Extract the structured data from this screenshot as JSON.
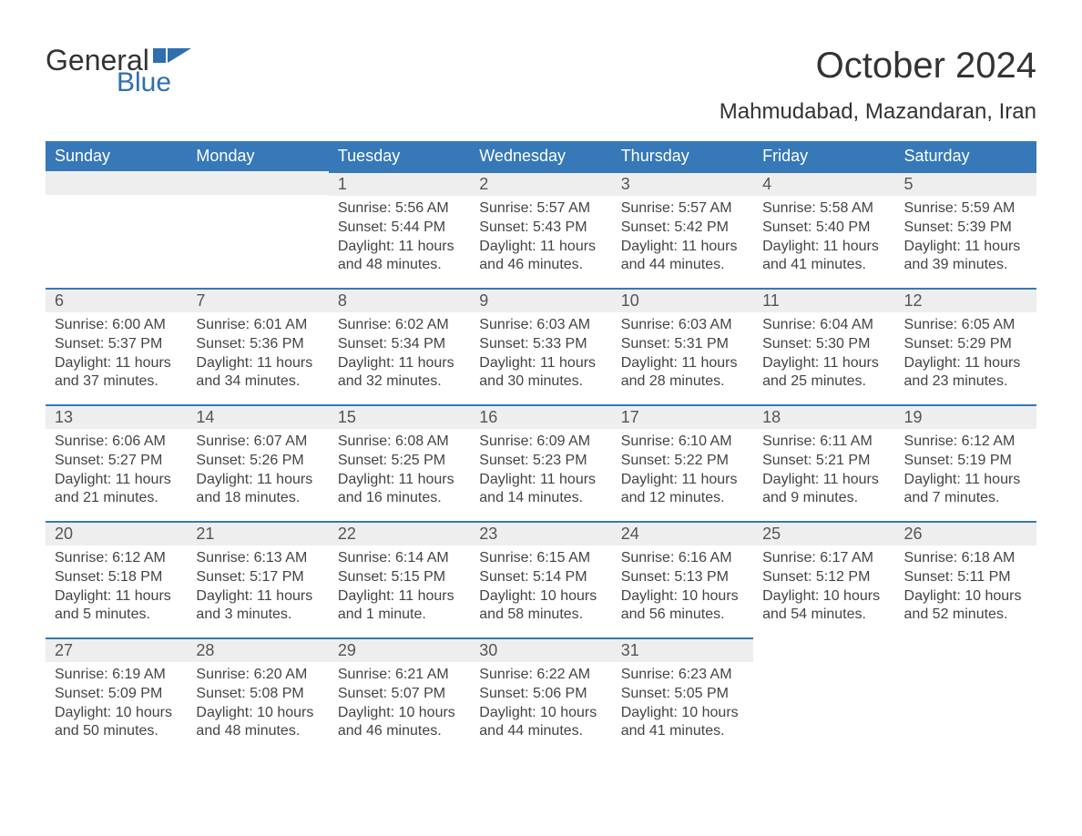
{
  "logo": {
    "text1": "General",
    "text2": "Blue",
    "flag_color": "#2f6fae"
  },
  "title": "October 2024",
  "location": "Mahmudabad, Mazandaran, Iran",
  "colors": {
    "header_bg": "#3678b8",
    "header_text": "#ffffff",
    "day_header_bg": "#eeeeee",
    "day_border": "#3678b8",
    "body_text": "#444444",
    "title_text": "#333333"
  },
  "weekdays": [
    "Sunday",
    "Monday",
    "Tuesday",
    "Wednesday",
    "Thursday",
    "Friday",
    "Saturday"
  ],
  "weeks": [
    [
      null,
      null,
      {
        "n": "1",
        "sr": "Sunrise: 5:56 AM",
        "ss": "Sunset: 5:44 PM",
        "dl": "Daylight: 11 hours and 48 minutes."
      },
      {
        "n": "2",
        "sr": "Sunrise: 5:57 AM",
        "ss": "Sunset: 5:43 PM",
        "dl": "Daylight: 11 hours and 46 minutes."
      },
      {
        "n": "3",
        "sr": "Sunrise: 5:57 AM",
        "ss": "Sunset: 5:42 PM",
        "dl": "Daylight: 11 hours and 44 minutes."
      },
      {
        "n": "4",
        "sr": "Sunrise: 5:58 AM",
        "ss": "Sunset: 5:40 PM",
        "dl": "Daylight: 11 hours and 41 minutes."
      },
      {
        "n": "5",
        "sr": "Sunrise: 5:59 AM",
        "ss": "Sunset: 5:39 PM",
        "dl": "Daylight: 11 hours and 39 minutes."
      }
    ],
    [
      {
        "n": "6",
        "sr": "Sunrise: 6:00 AM",
        "ss": "Sunset: 5:37 PM",
        "dl": "Daylight: 11 hours and 37 minutes."
      },
      {
        "n": "7",
        "sr": "Sunrise: 6:01 AM",
        "ss": "Sunset: 5:36 PM",
        "dl": "Daylight: 11 hours and 34 minutes."
      },
      {
        "n": "8",
        "sr": "Sunrise: 6:02 AM",
        "ss": "Sunset: 5:34 PM",
        "dl": "Daylight: 11 hours and 32 minutes."
      },
      {
        "n": "9",
        "sr": "Sunrise: 6:03 AM",
        "ss": "Sunset: 5:33 PM",
        "dl": "Daylight: 11 hours and 30 minutes."
      },
      {
        "n": "10",
        "sr": "Sunrise: 6:03 AM",
        "ss": "Sunset: 5:31 PM",
        "dl": "Daylight: 11 hours and 28 minutes."
      },
      {
        "n": "11",
        "sr": "Sunrise: 6:04 AM",
        "ss": "Sunset: 5:30 PM",
        "dl": "Daylight: 11 hours and 25 minutes."
      },
      {
        "n": "12",
        "sr": "Sunrise: 6:05 AM",
        "ss": "Sunset: 5:29 PM",
        "dl": "Daylight: 11 hours and 23 minutes."
      }
    ],
    [
      {
        "n": "13",
        "sr": "Sunrise: 6:06 AM",
        "ss": "Sunset: 5:27 PM",
        "dl": "Daylight: 11 hours and 21 minutes."
      },
      {
        "n": "14",
        "sr": "Sunrise: 6:07 AM",
        "ss": "Sunset: 5:26 PM",
        "dl": "Daylight: 11 hours and 18 minutes."
      },
      {
        "n": "15",
        "sr": "Sunrise: 6:08 AM",
        "ss": "Sunset: 5:25 PM",
        "dl": "Daylight: 11 hours and 16 minutes."
      },
      {
        "n": "16",
        "sr": "Sunrise: 6:09 AM",
        "ss": "Sunset: 5:23 PM",
        "dl": "Daylight: 11 hours and 14 minutes."
      },
      {
        "n": "17",
        "sr": "Sunrise: 6:10 AM",
        "ss": "Sunset: 5:22 PM",
        "dl": "Daylight: 11 hours and 12 minutes."
      },
      {
        "n": "18",
        "sr": "Sunrise: 6:11 AM",
        "ss": "Sunset: 5:21 PM",
        "dl": "Daylight: 11 hours and 9 minutes."
      },
      {
        "n": "19",
        "sr": "Sunrise: 6:12 AM",
        "ss": "Sunset: 5:19 PM",
        "dl": "Daylight: 11 hours and 7 minutes."
      }
    ],
    [
      {
        "n": "20",
        "sr": "Sunrise: 6:12 AM",
        "ss": "Sunset: 5:18 PM",
        "dl": "Daylight: 11 hours and 5 minutes."
      },
      {
        "n": "21",
        "sr": "Sunrise: 6:13 AM",
        "ss": "Sunset: 5:17 PM",
        "dl": "Daylight: 11 hours and 3 minutes."
      },
      {
        "n": "22",
        "sr": "Sunrise: 6:14 AM",
        "ss": "Sunset: 5:15 PM",
        "dl": "Daylight: 11 hours and 1 minute."
      },
      {
        "n": "23",
        "sr": "Sunrise: 6:15 AM",
        "ss": "Sunset: 5:14 PM",
        "dl": "Daylight: 10 hours and 58 minutes."
      },
      {
        "n": "24",
        "sr": "Sunrise: 6:16 AM",
        "ss": "Sunset: 5:13 PM",
        "dl": "Daylight: 10 hours and 56 minutes."
      },
      {
        "n": "25",
        "sr": "Sunrise: 6:17 AM",
        "ss": "Sunset: 5:12 PM",
        "dl": "Daylight: 10 hours and 54 minutes."
      },
      {
        "n": "26",
        "sr": "Sunrise: 6:18 AM",
        "ss": "Sunset: 5:11 PM",
        "dl": "Daylight: 10 hours and 52 minutes."
      }
    ],
    [
      {
        "n": "27",
        "sr": "Sunrise: 6:19 AM",
        "ss": "Sunset: 5:09 PM",
        "dl": "Daylight: 10 hours and 50 minutes."
      },
      {
        "n": "28",
        "sr": "Sunrise: 6:20 AM",
        "ss": "Sunset: 5:08 PM",
        "dl": "Daylight: 10 hours and 48 minutes."
      },
      {
        "n": "29",
        "sr": "Sunrise: 6:21 AM",
        "ss": "Sunset: 5:07 PM",
        "dl": "Daylight: 10 hours and 46 minutes."
      },
      {
        "n": "30",
        "sr": "Sunrise: 6:22 AM",
        "ss": "Sunset: 5:06 PM",
        "dl": "Daylight: 10 hours and 44 minutes."
      },
      {
        "n": "31",
        "sr": "Sunrise: 6:23 AM",
        "ss": "Sunset: 5:05 PM",
        "dl": "Daylight: 10 hours and 41 minutes."
      },
      null,
      null
    ]
  ]
}
